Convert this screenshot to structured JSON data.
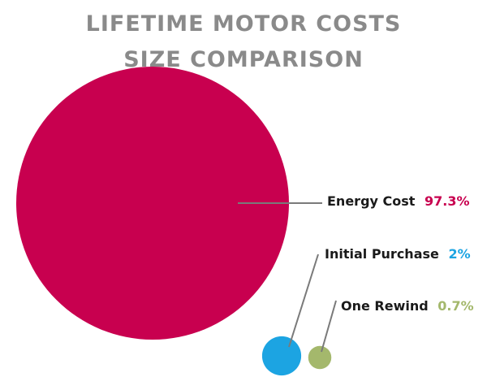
{
  "title_lines": [
    "LIFETIME MOTOR COSTS",
    "SIZE COMPARISON"
  ],
  "colors": {
    "title": "#8a8a8a",
    "leader_line": "#7a7a7a",
    "label_text": "#1a1a1a"
  },
  "chart_data": {
    "type": "pie",
    "title": "LIFETIME MOTOR COSTS SIZE COMPARISON",
    "unit": "%",
    "slices": [
      {
        "label": "Energy Cost",
        "value": 97.3,
        "display_value": "97.3%",
        "color": "#c8004f"
      },
      {
        "label": "Initial Purchase",
        "value": 2,
        "display_value": "2%",
        "color": "#1ca4e2"
      },
      {
        "label": "One Rewind",
        "value": 0.7,
        "display_value": "0.7%",
        "color": "#a4b86c"
      }
    ]
  }
}
